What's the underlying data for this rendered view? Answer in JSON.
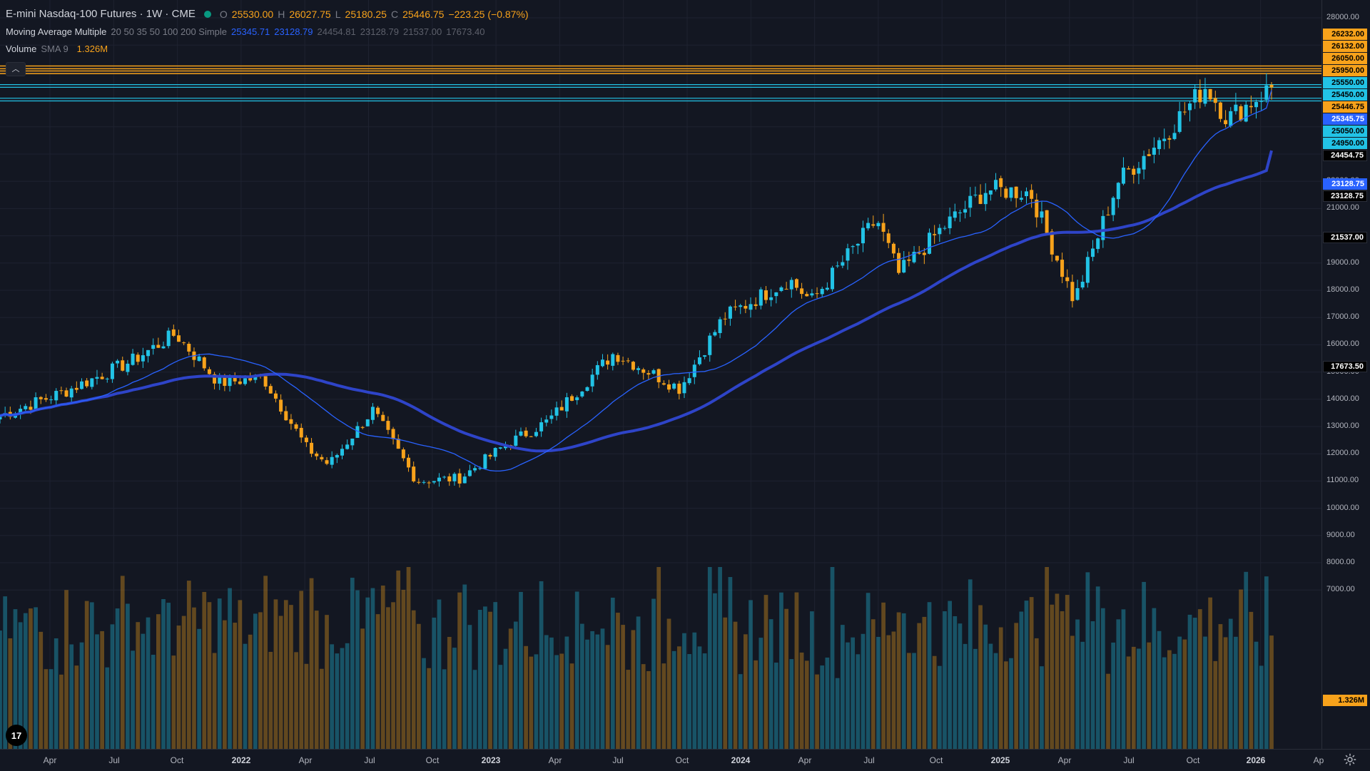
{
  "header": {
    "title": "E-mini Nasdaq-100 Futures · 1W · CME",
    "o_label": "O",
    "o_value": "25530.00",
    "h_label": "H",
    "h_value": "26027.75",
    "l_label": "L",
    "l_value": "25180.25",
    "c_label": "C",
    "c_value": "25446.75",
    "change": "−223.25 (−0.87%)",
    "status_color": "#089981"
  },
  "indicators": {
    "ma_name": "Moving Average Multiple",
    "ma_params": "20 50 35 50 100 200 Simple",
    "ma_values": [
      {
        "text": "25345.71",
        "color": "#2962ff"
      },
      {
        "text": "23128.79",
        "color": "#2962ff"
      },
      {
        "text": "24454.81",
        "color": "#5d606b"
      },
      {
        "text": "23128.79",
        "color": "#5d606b"
      },
      {
        "text": "21537.00",
        "color": "#5d606b"
      },
      {
        "text": "17673.40",
        "color": "#5d606b"
      }
    ],
    "vol_name": "Volume",
    "vol_params": "SMA 9",
    "vol_value": "1.326M",
    "collapse_icon": "chevron-up-icon"
  },
  "price_axis": {
    "ticks": [
      "28000.00",
      "22000.00",
      "21000.00",
      "20000.00",
      "19000.00",
      "18000.00",
      "17000.00",
      "16000.00",
      "15000.00",
      "14000.00",
      "13000.00",
      "12000.00",
      "11000.00",
      "10000.00",
      "9000.00",
      "8000.00",
      "7000.00"
    ],
    "tags": [
      {
        "text": "26232.00",
        "bg": "#f7a21b",
        "fg": "#000000"
      },
      {
        "text": "26132.00",
        "bg": "#f7a21b",
        "fg": "#000000"
      },
      {
        "text": "26050.00",
        "bg": "#f7a21b",
        "fg": "#000000"
      },
      {
        "text": "25950.00",
        "bg": "#f7a21b",
        "fg": "#000000"
      },
      {
        "text": "25550.00",
        "bg": "#22c3e6",
        "fg": "#000000"
      },
      {
        "text": "25450.00",
        "bg": "#22c3e6",
        "fg": "#000000"
      },
      {
        "text": "25446.75",
        "bg": "#f7a21b",
        "fg": "#000000"
      },
      {
        "text": "25345.75",
        "bg": "#2962ff",
        "fg": "#ffffff"
      },
      {
        "text": "25050.00",
        "bg": "#22c3e6",
        "fg": "#000000"
      },
      {
        "text": "24950.00",
        "bg": "#22c3e6",
        "fg": "#000000"
      },
      {
        "text": "24454.75",
        "bg": "#000000",
        "fg": "#ffffff"
      },
      {
        "text": "23128.75",
        "bg": "#2962ff",
        "fg": "#ffffff"
      },
      {
        "text": "23128.75",
        "bg": "#000000",
        "fg": "#ffffff"
      },
      {
        "text": "21537.00",
        "bg": "#000000",
        "fg": "#ffffff"
      },
      {
        "text": "17673.50",
        "bg": "#000000",
        "fg": "#ffffff"
      },
      {
        "text": "1.326M",
        "bg": "#f7a21b",
        "fg": "#000000"
      }
    ]
  },
  "time_axis": {
    "labels": [
      {
        "text": "Apr",
        "year": false
      },
      {
        "text": "Jul",
        "year": false
      },
      {
        "text": "Oct",
        "year": false
      },
      {
        "text": "2022",
        "year": true
      },
      {
        "text": "Apr",
        "year": false
      },
      {
        "text": "Jul",
        "year": false
      },
      {
        "text": "Oct",
        "year": false
      },
      {
        "text": "2023",
        "year": true
      },
      {
        "text": "Apr",
        "year": false
      },
      {
        "text": "Jul",
        "year": false
      },
      {
        "text": "Oct",
        "year": false
      },
      {
        "text": "2024",
        "year": true
      },
      {
        "text": "Apr",
        "year": false
      },
      {
        "text": "Jul",
        "year": false
      },
      {
        "text": "Oct",
        "year": false
      },
      {
        "text": "2025",
        "year": true
      },
      {
        "text": "Apr",
        "year": false
      },
      {
        "text": "Jul",
        "year": false
      },
      {
        "text": "Oct",
        "year": false
      },
      {
        "text": "2026",
        "year": true
      },
      {
        "text": "Ap",
        "year": false
      }
    ]
  },
  "footer": {
    "logo_text": "17",
    "logo_icon": "tradingview-logo-icon",
    "settings_icon": "gear-icon"
  },
  "colors": {
    "up": "#22c3e6",
    "down": "#f7a21b",
    "ma_fast": "#2962ff",
    "ma_slow": "#2e44c8",
    "bg": "#131722",
    "grid": "#1e2230"
  },
  "chart_data": {
    "type": "candlestick",
    "title": "E-mini Nasdaq-100 Futures · 1W · CME",
    "x_start": "2021-03",
    "x_end": "2026-01",
    "ylim": [
      7000,
      28000
    ],
    "horizontal_levels": [
      26232,
      26132,
      26050,
      25950,
      25550,
      25450,
      25050,
      24950
    ],
    "close_anchors": [
      {
        "date": "2021-03",
        "close": 13400
      },
      {
        "date": "2021-06",
        "close": 14300
      },
      {
        "date": "2021-09",
        "close": 15400
      },
      {
        "date": "2021-11",
        "close": 16400
      },
      {
        "date": "2022-01",
        "close": 14600
      },
      {
        "date": "2022-03",
        "close": 14800
      },
      {
        "date": "2022-05",
        "close": 12200
      },
      {
        "date": "2022-06",
        "close": 11600
      },
      {
        "date": "2022-08",
        "close": 13600
      },
      {
        "date": "2022-10",
        "close": 11000
      },
      {
        "date": "2022-12",
        "close": 11100
      },
      {
        "date": "2023-02",
        "close": 12300
      },
      {
        "date": "2023-04",
        "close": 13200
      },
      {
        "date": "2023-07",
        "close": 15700
      },
      {
        "date": "2023-10",
        "close": 14400
      },
      {
        "date": "2023-12",
        "close": 17000
      },
      {
        "date": "2024-03",
        "close": 18400
      },
      {
        "date": "2024-04",
        "close": 17600
      },
      {
        "date": "2024-07",
        "close": 20600
      },
      {
        "date": "2024-08",
        "close": 18600
      },
      {
        "date": "2024-10",
        "close": 20300
      },
      {
        "date": "2024-12",
        "close": 21700
      },
      {
        "date": "2025-02",
        "close": 21600
      },
      {
        "date": "2025-04",
        "close": 17600
      },
      {
        "date": "2025-06",
        "close": 22000
      },
      {
        "date": "2025-08",
        "close": 23600
      },
      {
        "date": "2025-10",
        "close": 25500
      },
      {
        "date": "2025-11",
        "close": 24300
      },
      {
        "date": "2026-01",
        "close": 25446.75
      }
    ],
    "ma_fast_last": 25345.71,
    "ma_slow_last": 23128.79,
    "volume_last": "1.326M",
    "grid": true
  }
}
